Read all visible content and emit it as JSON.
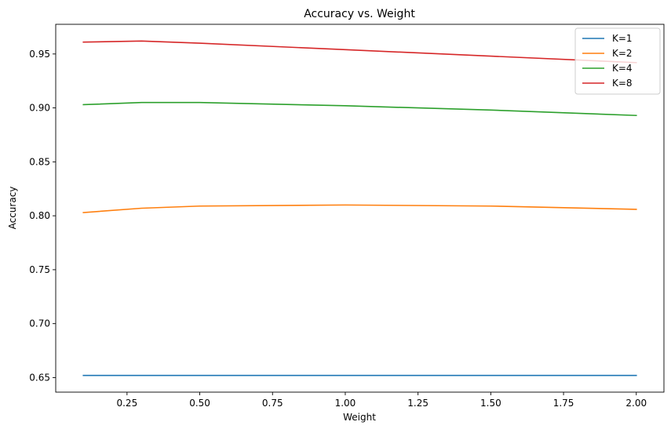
{
  "chart_data": {
    "type": "line",
    "title": "Accuracy vs. Weight",
    "xlabel": "Weight",
    "ylabel": "Accuracy",
    "x": [
      0.1,
      0.3,
      0.5,
      1.0,
      1.5,
      2.0
    ],
    "xlim": [
      0.005,
      2.095
    ],
    "ylim": [
      0.6365,
      0.9775
    ],
    "xticks": [
      0.25,
      0.5,
      0.75,
      1.0,
      1.25,
      1.5,
      1.75,
      2.0
    ],
    "xtick_labels": [
      "0.25",
      "0.50",
      "0.75",
      "1.00",
      "1.25",
      "1.50",
      "1.75",
      "2.00"
    ],
    "yticks": [
      0.65,
      0.7,
      0.75,
      0.8,
      0.85,
      0.9,
      0.95
    ],
    "ytick_labels": [
      "0.65",
      "0.70",
      "0.75",
      "0.80",
      "0.85",
      "0.90",
      "0.95"
    ],
    "grid": false,
    "legend_position": "top-right",
    "series": [
      {
        "name": "K=1",
        "color": "#1f77b4",
        "values": [
          0.652,
          0.652,
          0.652,
          0.652,
          0.652,
          0.652
        ]
      },
      {
        "name": "K=2",
        "color": "#ff7f0e",
        "values": [
          0.803,
          0.807,
          0.809,
          0.81,
          0.809,
          0.806
        ]
      },
      {
        "name": "K=4",
        "color": "#2ca02c",
        "values": [
          0.903,
          0.905,
          0.905,
          0.902,
          0.898,
          0.893
        ]
      },
      {
        "name": "K=8",
        "color": "#d62728",
        "values": [
          0.961,
          0.962,
          0.96,
          0.954,
          0.948,
          0.942
        ]
      }
    ]
  }
}
